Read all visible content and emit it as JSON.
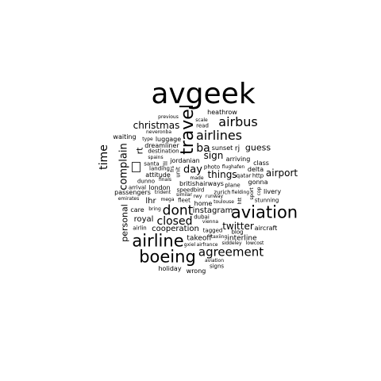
{
  "words": {
    "avgeek": "avgeek",
    "travel": "travel",
    "airbus": "airbus",
    "airlines": "airlines",
    "christmas": "christmas",
    "heathrow": "heathrow",
    "previous": "previous",
    "scale": "scale",
    "read": "read",
    "neveronba": "neveronba",
    "waiting": "waiting",
    "type": "type",
    "luggage": "luggage",
    "dreamliner": "dreamliner",
    "destination": "destination",
    "spains": "spains",
    "rt": "rt",
    "time": "time",
    "complain": "complain",
    "ba": "ba",
    "sunset": "sunset",
    "rj": "rj",
    "guess": "guess",
    "sign": "sign",
    "arriving": "arriving",
    "class": "class",
    "jordanian": "jordanian",
    "santa": "santa",
    "jll": "jll",
    "day": "day",
    "things": "things",
    "photo": "photo",
    "flughafen": "flughafen",
    "delta": "delta",
    "airport": "airport",
    "landing": "landing",
    "frs": "frs",
    "attitude": "attitude",
    "qatar": "qatar",
    "http": "http",
    "finals": "finals",
    "made": "made",
    "unit": "unit",
    "dunno": "dunno",
    "britishairways": "britishairways",
    "plane": "plane",
    "gonna": "gonna",
    "arrival": "arrival",
    "london": "london",
    "speedbird": "speedbird",
    "zurich": "zurich",
    "fielding": "fielding",
    "livery": "livery",
    "passengers": "passengers",
    "trident": "trident",
    "similar": "similar",
    "rwy": "rwy",
    "runway": "runway",
    "htt": "htt",
    "sport": "sport",
    "emirates": "emirates",
    "mega": "mega",
    "fleet": "fleet",
    "home": "home",
    "toulouse": "toulouse",
    "lhr": "lhr",
    "cop": "cop",
    "stunning": "stunning",
    "care": "care",
    "bring": "bring",
    "dont": "dont",
    "instagram": "instagram",
    "aviation": "aviation",
    "personal": "personal",
    "royal": "royal",
    "closed": "closed",
    "dubai": "dubai",
    "vienna": "vienna",
    "airlin": "airlin",
    "cooperation": "cooperation",
    "twitter": "twitter",
    "aircraft": "aircraft",
    "tagged": "tagged",
    "blog": "blog",
    "takeoff": "takeoff",
    "taxiing": "taxiing",
    "interline": "interline",
    "airline": "airline",
    "gxiel": "gxiel",
    "airfrance": "airfrance",
    "siddeley": "siddeley",
    "lowcost": "lowcost",
    "agreement": "agreement",
    "boeing": "boeing",
    "aviation2": "aviation",
    "signs": "signs",
    "holiday": "holiday",
    "wrong": "wrong"
  }
}
